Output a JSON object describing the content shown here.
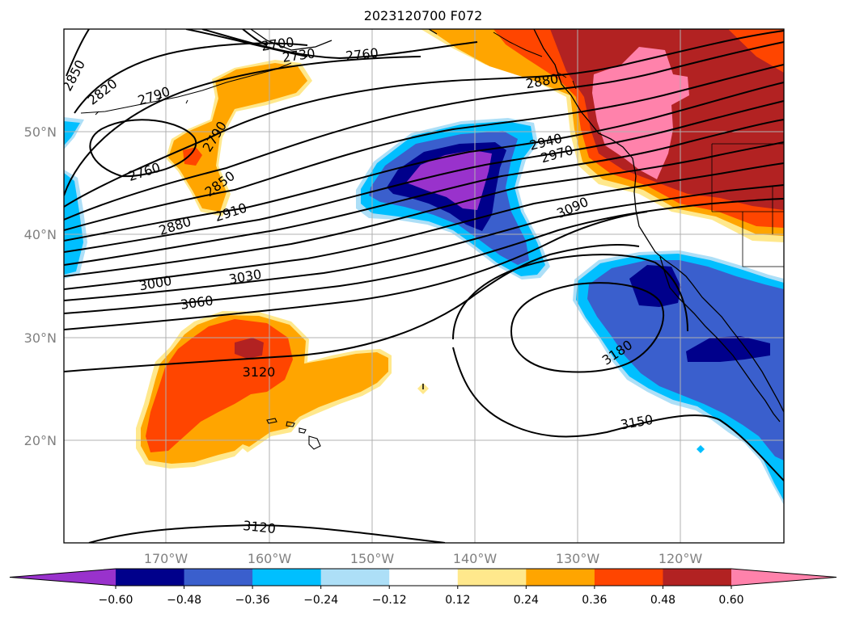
{
  "title": "2023120700 F072",
  "latitude_labels": [
    "50°N",
    "40°N",
    "30°N",
    "20°N"
  ],
  "longitude_labels": [
    "170°W",
    "160°W",
    "150°W",
    "140°W",
    "130°W",
    "120°W"
  ],
  "contour_labels": [
    "2850",
    "2820",
    "2790",
    "2700",
    "2730",
    "2760",
    "2760",
    "2790",
    "2850",
    "2880",
    "2910",
    "2940",
    "2970",
    "3090",
    "3000",
    "3030",
    "3060",
    "3120",
    "3180",
    "3150",
    "3120",
    "2880"
  ],
  "colorbar": {
    "ticks": [
      "−0.60",
      "−0.48",
      "−0.36",
      "−0.24",
      "−0.12",
      "0.12",
      "0.24",
      "0.36",
      "0.48",
      "0.60"
    ],
    "colors": [
      "#9932CC",
      "#00008B",
      "#3A5FCD",
      "#00BFFF",
      "#ADDFF7",
      "#FFFFFF",
      "#FFE88C",
      "#FFA500",
      "#FF4500",
      "#B22222",
      "#FF82AB"
    ]
  },
  "fill_colors": {
    "purple": "#9932CC",
    "navy": "#00008B",
    "royal": "#3A5FCD",
    "sky": "#00BFFF",
    "lightblue": "#ADDFF7",
    "yellow": "#FFE88C",
    "orange": "#FFA500",
    "redorange": "#FF4500",
    "firebrick": "#B22222",
    "pink": "#FF82AB"
  }
}
